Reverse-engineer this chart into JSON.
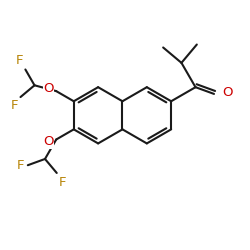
{
  "bond_color": "#1a1a1a",
  "o_color": "#cc0000",
  "f_color": "#b8860b",
  "bg_color": "#ffffff",
  "bond_width": 1.5,
  "font_size": 9.5,
  "BL": 0.58,
  "xlim": [
    -0.3,
    4.8
  ],
  "ylim": [
    -2.1,
    2.6
  ]
}
